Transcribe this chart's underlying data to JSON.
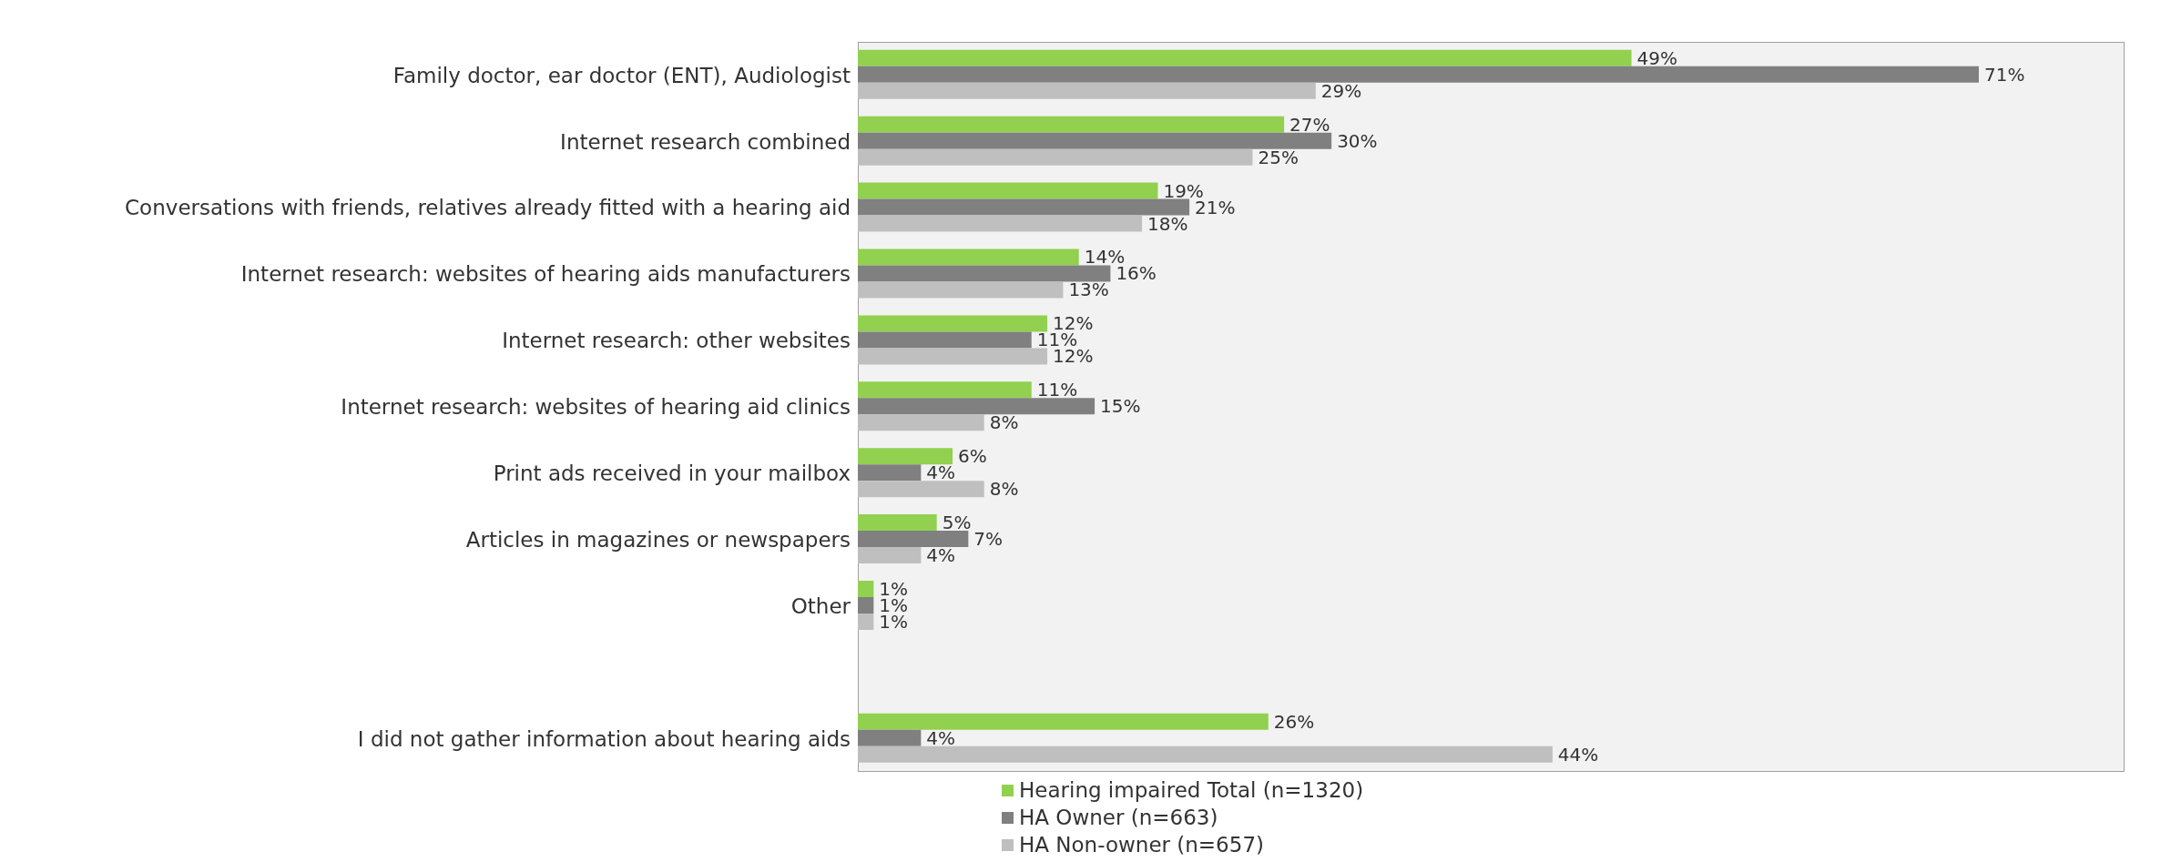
{
  "chart_data": {
    "type": "bar",
    "orientation": "horizontal",
    "categories": [
      "Family doctor, ear doctor (ENT), Audiologist",
      "Internet research combined",
      "Conversations with friends, relatives already fitted with a hearing aid",
      "Internet research: websites of hearing aids manufacturers",
      "Internet research: other websites",
      "Internet research: websites of hearing aid clinics",
      "Print ads received in your mailbox",
      "Articles in magazines or newspapers",
      "Other",
      null,
      "I did not gather information about hearing aids"
    ],
    "series": [
      {
        "name": "Hearing impaired Total (n=1320)",
        "color": "#92d050",
        "values": [
          49,
          27,
          19,
          14,
          12,
          11,
          6,
          5,
          1,
          null,
          26
        ],
        "value_labels": [
          "49%",
          "27%",
          "19%",
          "14%",
          "12%",
          "11%",
          "6%",
          "5%",
          "1%",
          null,
          "26%"
        ]
      },
      {
        "name": "HA Owner (n=663)",
        "color": "#808080",
        "values": [
          71,
          30,
          21,
          16,
          11,
          15,
          4,
          7,
          1,
          null,
          4
        ],
        "value_labels": [
          "71%",
          "30%",
          "21%",
          "16%",
          "11%",
          "15%",
          "4%",
          "7%",
          "1%",
          null,
          "4%"
        ]
      },
      {
        "name": "HA Non-owner (n=657)",
        "color": "#bfbfbf",
        "values": [
          29,
          25,
          18,
          13,
          12,
          8,
          8,
          4,
          1,
          null,
          44
        ],
        "value_labels": [
          "29%",
          "25%",
          "18%",
          "13%",
          "12%",
          "8%",
          "8%",
          "4%",
          "1%",
          null,
          "44%"
        ]
      }
    ],
    "legend": "bottom",
    "grid": false
  }
}
